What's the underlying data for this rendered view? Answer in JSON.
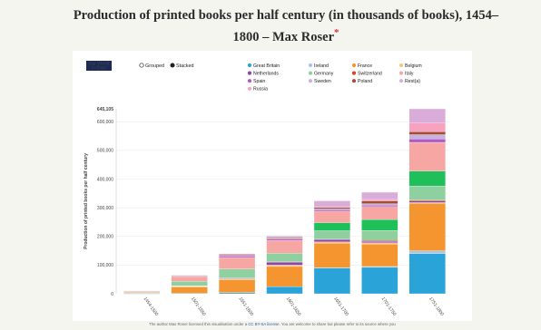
{
  "title": "Production of printed books per half century (in thousands of books), 1454–1800 – Max Roser",
  "title_mark": "*",
  "logo_text": [
    "Our World",
    "in Data"
  ],
  "mode_controls": [
    {
      "label": "Grouped",
      "selected": false
    },
    {
      "label": "Stacked",
      "selected": true
    }
  ],
  "footer": {
    "text_before": "The author Max Roser licensed this visualisation under a",
    "link": "CC BY-SA license",
    "text_after": ". You are welcome to share but please refer to its source where you"
  },
  "colors": {
    "Great Britain": "#2aa4d8",
    "Netherlands": "#8e44ad",
    "Spain": "#b05ac8",
    "Russia": "#f7a3bf",
    "Ireland": "#a9c6e6",
    "Germany": "#8fd0a1",
    "Sweden": "#c7b3e0",
    "France": "#f4952f",
    "Switzerland": "#e0421f",
    "Poland": "#a24e36",
    "Belgium": "#f5c58a",
    "Italy": "#f7a7a3",
    "Rest(a)": "#d9acd9",
    "Germany_dark": "#1fbf5a"
  },
  "chart_data": {
    "type": "bar",
    "stacked": true,
    "title": "Production of printed books per half century (in thousands of books), 1454–1800 – Max Roser",
    "ylabel": "Production of printed books per half century",
    "xlabel": "",
    "ylim": [
      0,
      645105
    ],
    "ymax_label": "645,105",
    "yticks": [
      "0",
      "100,000",
      "200,000",
      "300,000",
      "400,000",
      "500,000",
      "600,000"
    ],
    "ytick_values": [
      0,
      100000,
      200000,
      300000,
      400000,
      500000,
      600000
    ],
    "legend_position": "top",
    "categories": [
      "1454-1500",
      "1501-1550",
      "1551-1600",
      "1601-1650",
      "1651-1700",
      "1701-1750",
      "1751-1800"
    ],
    "series": [
      {
        "name": "Great Britain",
        "values": [
          200,
          1500,
          4000,
          25000,
          90000,
          92000,
          140000
        ]
      },
      {
        "name": "Ireland",
        "values": [
          0,
          0,
          0,
          0,
          1000,
          3000,
          10000
        ]
      },
      {
        "name": "France",
        "values": [
          3000,
          22000,
          45000,
          70000,
          85000,
          78000,
          165000
        ]
      },
      {
        "name": "Belgium",
        "values": [
          500,
          3000,
          3000,
          5000,
          5000,
          5000,
          3000
        ]
      },
      {
        "name": "Netherlands",
        "values": [
          200,
          1000,
          2000,
          10000,
          8000,
          5000,
          5000
        ]
      },
      {
        "name": "Switzerland",
        "values": [
          200,
          500,
          500,
          1000,
          1000,
          3000,
          3000
        ]
      },
      {
        "name": "Germany",
        "values": [
          2500,
          15000,
          32000,
          30000,
          30000,
          35000,
          50000
        ]
      },
      {
        "name": "Germany (darker tone)",
        "values": [
          0,
          0,
          0,
          0,
          28000,
          38000,
          52000
        ]
      },
      {
        "name": "Italy",
        "values": [
          3500,
          17000,
          40000,
          45000,
          40000,
          45000,
          100000
        ]
      },
      {
        "name": "Spain",
        "values": [
          300,
          2000,
          5000,
          5000,
          5000,
          5000,
          12000
        ]
      },
      {
        "name": "Sweden",
        "values": [
          0,
          500,
          1000,
          3000,
          3000,
          5000,
          15000
        ]
      },
      {
        "name": "Poland",
        "values": [
          100,
          1000,
          3000,
          3000,
          5000,
          10000,
          10000
        ]
      },
      {
        "name": "Russia",
        "values": [
          0,
          0,
          0,
          0,
          1000,
          5000,
          30000
        ]
      },
      {
        "name": "Rest(a)",
        "values": [
          200,
          1500,
          4000,
          5000,
          22000,
          25000,
          50000
        ]
      }
    ],
    "legend": [
      "Great Britain",
      "Ireland",
      "France",
      "Belgium",
      "Netherlands",
      "Germany",
      "Switzerland",
      "Italy",
      "Spain",
      "Sweden",
      "Poland",
      "Rest(a)",
      "Russia"
    ]
  }
}
